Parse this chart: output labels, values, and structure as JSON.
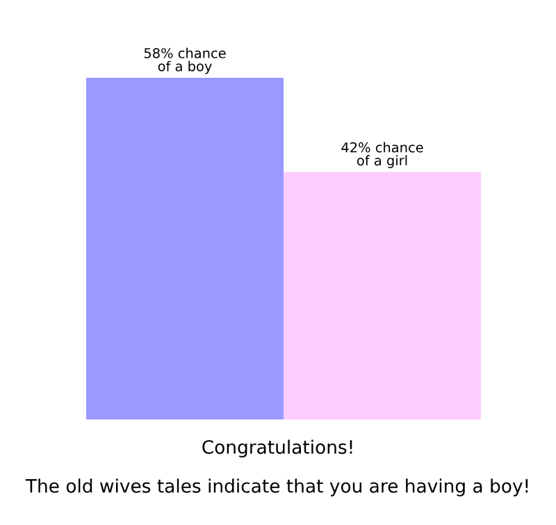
{
  "chart_data": {
    "type": "bar",
    "categories": [
      null,
      null
    ],
    "values": [
      58,
      42
    ],
    "colors": [
      "#9999ff",
      "#ffccff"
    ],
    "value_labels": [
      "58% chance\nof a boy",
      "42% chance\nof a girl"
    ],
    "annotations": [
      "Congratulations!",
      "The old wives tales indicate that you are having a boy!"
    ],
    "grid": false,
    "legend": false
  }
}
